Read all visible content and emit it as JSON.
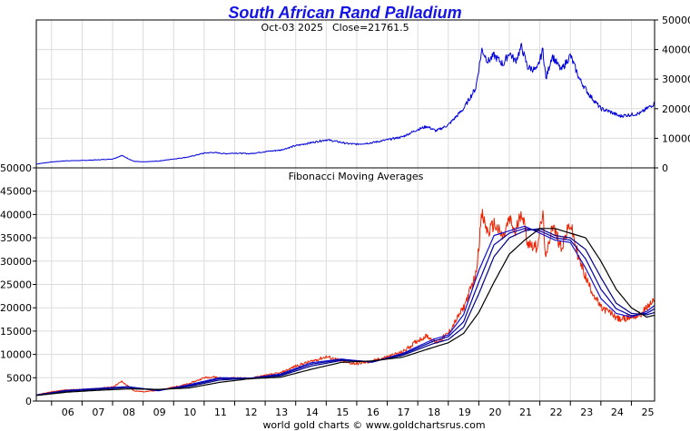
{
  "chart_data": [
    {
      "type": "line",
      "title": "South African Rand Palladium",
      "subtitle_date": "Oct-03  2025",
      "subtitle_close": "Close=21761.5",
      "y_axis_side": "right",
      "ylim": [
        0,
        50000
      ],
      "y_ticks": [
        "0",
        "10000",
        "20000",
        "30000",
        "40000",
        "50000"
      ],
      "grid": true,
      "series": [
        {
          "color": "#0000dd",
          "x": [
            2005.5,
            2006.0,
            2006.5,
            2007.0,
            2007.5,
            2008.0,
            2008.3,
            2008.7,
            2009.0,
            2009.5,
            2010.0,
            2010.5,
            2011.0,
            2011.3,
            2011.7,
            2012.0,
            2012.5,
            2013.0,
            2013.5,
            2014.0,
            2014.5,
            2015.0,
            2015.3,
            2015.7,
            2016.0,
            2016.5,
            2017.0,
            2017.5,
            2018.0,
            2018.3,
            2018.6,
            2019.0,
            2019.5,
            2019.9,
            2020.1,
            2020.3,
            2020.5,
            2020.8,
            2021.0,
            2021.2,
            2021.4,
            2021.6,
            2021.9,
            2022.1,
            2022.2,
            2022.4,
            2022.7,
            2023.0,
            2023.3,
            2023.6,
            2024.0,
            2024.3,
            2024.6,
            2025.0,
            2025.3,
            2025.5,
            2025.76
          ],
          "values": [
            1300,
            2000,
            2400,
            2500,
            2700,
            3000,
            4200,
            2200,
            2000,
            2300,
            3000,
            3700,
            5000,
            5200,
            4800,
            5000,
            4800,
            5500,
            6000,
            7500,
            8500,
            9500,
            9000,
            8200,
            8000,
            8500,
            9500,
            10500,
            13000,
            14000,
            12500,
            14500,
            20000,
            27000,
            40000,
            36000,
            38000,
            35000,
            39000,
            36000,
            41000,
            34000,
            33000,
            40000,
            30000,
            38000,
            33000,
            38000,
            30000,
            25000,
            20000,
            19000,
            17500,
            18000,
            18500,
            20000,
            21761.5
          ]
        }
      ]
    },
    {
      "type": "line",
      "title": "Fibonacci Moving Averages",
      "ylim": [
        0,
        50000
      ],
      "y_ticks": [
        "0",
        "5000",
        "10000",
        "15000",
        "20000",
        "25000",
        "30000",
        "35000",
        "40000",
        "45000",
        "50000"
      ],
      "x_ticks": [
        "06",
        "07",
        "08",
        "09",
        "10",
        "11",
        "12",
        "13",
        "14",
        "15",
        "16",
        "17",
        "18",
        "19",
        "20",
        "21",
        "22",
        "23",
        "24",
        "25"
      ],
      "grid": true,
      "series": [
        {
          "color": "#ee2200",
          "x": [
            2005.5,
            2006.0,
            2006.5,
            2007.0,
            2007.5,
            2008.0,
            2008.3,
            2008.7,
            2009.0,
            2009.5,
            2010.0,
            2010.5,
            2011.0,
            2011.3,
            2011.7,
            2012.0,
            2012.5,
            2013.0,
            2013.5,
            2014.0,
            2014.5,
            2015.0,
            2015.3,
            2015.7,
            2016.0,
            2016.5,
            2017.0,
            2017.5,
            2018.0,
            2018.3,
            2018.6,
            2019.0,
            2019.5,
            2019.9,
            2020.1,
            2020.3,
            2020.5,
            2020.8,
            2021.0,
            2021.2,
            2021.4,
            2021.6,
            2021.9,
            2022.1,
            2022.2,
            2022.4,
            2022.7,
            2023.0,
            2023.3,
            2023.6,
            2024.0,
            2024.3,
            2024.6,
            2025.0,
            2025.3,
            2025.5,
            2025.76
          ],
          "values": [
            1300,
            2000,
            2400,
            2500,
            2700,
            3000,
            4200,
            2200,
            2000,
            2300,
            3000,
            3700,
            5000,
            5200,
            4800,
            5000,
            4800,
            5500,
            6000,
            7500,
            8500,
            9500,
            9000,
            8200,
            8000,
            8500,
            9500,
            10500,
            13000,
            14000,
            12500,
            14500,
            20000,
            27000,
            40000,
            36000,
            38000,
            35000,
            39000,
            36000,
            41000,
            34000,
            33000,
            40000,
            30000,
            38000,
            33000,
            38000,
            30000,
            25000,
            20000,
            19000,
            17500,
            18000,
            18500,
            20000,
            21761.5
          ]
        },
        {
          "color": "#1111cc",
          "x": [
            2005.5,
            2006.5,
            2007.5,
            2008.5,
            2009.5,
            2010.5,
            2011.5,
            2012.5,
            2013.5,
            2014.5,
            2015.5,
            2016.5,
            2017.5,
            2018.5,
            2019.0,
            2019.5,
            2020.0,
            2020.5,
            2021.0,
            2021.5,
            2022.0,
            2022.5,
            2023.0,
            2023.5,
            2024.0,
            2024.5,
            2025.0,
            2025.5,
            2025.76
          ],
          "values": [
            1300,
            2300,
            2700,
            3100,
            2200,
            3500,
            5000,
            4900,
            5800,
            8200,
            9000,
            8300,
            10200,
            13200,
            14200,
            18500,
            28000,
            35500,
            36500,
            37500,
            36000,
            34500,
            34000,
            28500,
            22000,
            18800,
            18000,
            19200,
            20500
          ]
        },
        {
          "color": "#0000aa",
          "x": [
            2005.5,
            2006.5,
            2007.5,
            2008.5,
            2009.5,
            2010.5,
            2011.5,
            2012.5,
            2013.5,
            2014.5,
            2015.5,
            2016.5,
            2017.5,
            2018.5,
            2019.0,
            2019.5,
            2020.0,
            2020.5,
            2021.0,
            2021.5,
            2022.0,
            2022.5,
            2023.0,
            2023.5,
            2024.0,
            2024.5,
            2025.0,
            2025.5,
            2025.76
          ],
          "values": [
            1300,
            2200,
            2600,
            3000,
            2300,
            3300,
            4800,
            4900,
            5600,
            7900,
            8900,
            8400,
            10000,
            12800,
            13800,
            17000,
            25500,
            33500,
            36000,
            37000,
            36500,
            35000,
            34500,
            30500,
            24000,
            19800,
            18300,
            18800,
            19800
          ]
        },
        {
          "color": "#000088",
          "x": [
            2005.5,
            2006.5,
            2007.5,
            2008.5,
            2009.5,
            2010.5,
            2011.5,
            2012.5,
            2013.5,
            2014.5,
            2015.5,
            2016.5,
            2017.5,
            2018.5,
            2019.0,
            2019.5,
            2020.0,
            2020.5,
            2021.0,
            2021.5,
            2022.0,
            2022.5,
            2023.0,
            2023.5,
            2024.0,
            2024.5,
            2025.0,
            2025.5,
            2025.76
          ],
          "values": [
            1300,
            2100,
            2500,
            2900,
            2400,
            3100,
            4500,
            4900,
            5400,
            7500,
            8700,
            8500,
            9800,
            12300,
            13200,
            15800,
            23000,
            31000,
            35000,
            36500,
            37000,
            35500,
            35000,
            32500,
            26500,
            21000,
            18800,
            18500,
            19000
          ]
        },
        {
          "color": "#000000",
          "x": [
            2005.5,
            2006.5,
            2007.5,
            2008.5,
            2009.5,
            2010.5,
            2011.5,
            2012.5,
            2013.5,
            2014.5,
            2015.5,
            2016.5,
            2017.5,
            2018.5,
            2019.0,
            2019.5,
            2020.0,
            2020.5,
            2021.0,
            2021.5,
            2022.0,
            2022.5,
            2023.0,
            2023.5,
            2024.0,
            2024.5,
            2025.0,
            2025.5,
            2025.76
          ],
          "values": [
            1200,
            1900,
            2300,
            2600,
            2500,
            2800,
            4000,
            4800,
            5100,
            6800,
            8300,
            8600,
            9400,
            11500,
            12500,
            14500,
            19000,
            25500,
            31500,
            34500,
            37000,
            37000,
            36000,
            35000,
            30000,
            24000,
            20000,
            18000,
            18400
          ]
        }
      ]
    }
  ],
  "footer": {
    "credit": "world gold charts © www.goldchartsrus.com"
  }
}
